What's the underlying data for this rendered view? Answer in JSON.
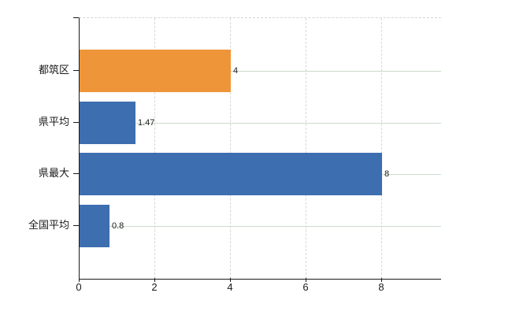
{
  "chart_data": {
    "type": "bar",
    "orientation": "horizontal",
    "title": "",
    "xlabel": "",
    "ylabel": "",
    "categories": [
      "都筑区",
      "県平均",
      "県最大",
      "全国平均"
    ],
    "values": [
      4,
      1.47,
      8,
      0.8
    ],
    "value_labels": [
      "4",
      "1.47",
      "8",
      "0.8"
    ],
    "bar_colors": [
      "#ef9539",
      "#3d6eb0",
      "#3d6eb0",
      "#3d6eb0"
    ],
    "x_tick_values": [
      0,
      2,
      4,
      6,
      8
    ],
    "x_tick_labels": [
      "0",
      "2",
      "4",
      "6",
      "8"
    ],
    "xlim": [
      0,
      9.56
    ],
    "legend": "none",
    "grid": "solid light-green horizontal lines at category centers; dashed light-gray vertical lines at x ticks and plot top"
  },
  "colors": {
    "highlight_bar": "#ef9539",
    "default_bar": "#3d6eb0",
    "grid_horizontal": "#ccdbcc",
    "grid_vertical": "#d6d6d6",
    "axis": "#1a1a1a",
    "label_text": "#1a1a1a",
    "background": "#ffffff"
  }
}
